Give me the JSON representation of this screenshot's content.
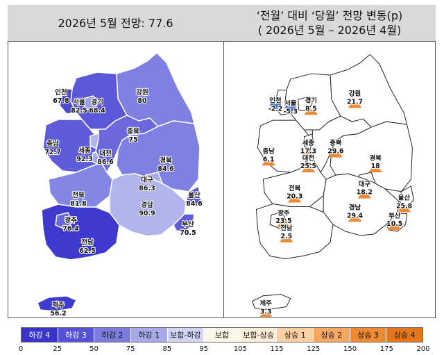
{
  "left_panel": {
    "title": "2026년 5월 전망: 77.6"
  },
  "right_panel": {
    "title_line1": "‘전월’ 대비 ‘당월’ 전망 변동(p)",
    "title_line2": "( 2026년 5월 –   2026년 4월)"
  },
  "left_regions": [
    {
      "name": "인천",
      "value": "67.8"
    },
    {
      "name": "서울",
      "value": "82.5"
    },
    {
      "name": "경기",
      "value": "68.4"
    },
    {
      "name": "강원",
      "value": "80"
    },
    {
      "name": "충남",
      "value": "72.7"
    },
    {
      "name": "세종",
      "value": "92.3"
    },
    {
      "name": "충북",
      "value": "75"
    },
    {
      "name": "대전",
      "value": "86.6"
    },
    {
      "name": "경북",
      "value": "84.6"
    },
    {
      "name": "대구",
      "value": "86.3"
    },
    {
      "name": "전북",
      "value": "81.8"
    },
    {
      "name": "울산",
      "value": "84.6"
    },
    {
      "name": "경남",
      "value": "90.9"
    },
    {
      "name": "광주",
      "value": "76.4"
    },
    {
      "name": "부산",
      "value": "70.5"
    },
    {
      "name": "전남",
      "value": "62.5"
    },
    {
      "name": "제주",
      "value": "56.2"
    }
  ],
  "right_regions": [
    {
      "name": "인천",
      "value": "-2.2",
      "direction": "down"
    },
    {
      "name": "서울",
      "value": "-5.3",
      "direction": "down"
    },
    {
      "name": "경기",
      "value": "8.5",
      "direction": "up"
    },
    {
      "name": "강원",
      "value": "21.7",
      "direction": "up"
    },
    {
      "name": "세종",
      "value": "17.3",
      "direction": "up"
    },
    {
      "name": "충북",
      "value": "29.6",
      "direction": "up"
    },
    {
      "name": "충남",
      "value": "6.1",
      "direction": "up"
    },
    {
      "name": "대전",
      "value": "25.5",
      "direction": "up"
    },
    {
      "name": "경북",
      "value": "18",
      "direction": "up"
    },
    {
      "name": "전북",
      "value": "20.3",
      "direction": "up"
    },
    {
      "name": "대구",
      "value": "18.2",
      "direction": "up"
    },
    {
      "name": "울산",
      "value": "25.8",
      "direction": "up"
    },
    {
      "name": "광주",
      "value": "23.5",
      "direction": "up"
    },
    {
      "name": "경남",
      "value": "29.4",
      "direction": "up"
    },
    {
      "name": "부산",
      "value": "10.5",
      "direction": "up"
    },
    {
      "name": "전남",
      "value": "2.5",
      "direction": "up"
    },
    {
      "name": "제주",
      "value": "3.3",
      "direction": "up"
    }
  ],
  "legend": {
    "categories": [
      {
        "label": "하강 4",
        "color": "#3a35c9",
        "text_color": "#ffffff"
      },
      {
        "label": "하강 3",
        "color": "#5552d6",
        "text_color": "#ffffff"
      },
      {
        "label": "하강 2",
        "color": "#7b7be0",
        "text_color": "#111111"
      },
      {
        "label": "하강 1",
        "color": "#a7a9ea",
        "text_color": "#111111"
      },
      {
        "label": "보합-하강",
        "color": "#d2d4f3",
        "text_color": "#111111"
      },
      {
        "label": "보합",
        "color": "#fbf7e8",
        "text_color": "#111111"
      },
      {
        "label": "보합-상승",
        "color": "#fdebd6",
        "text_color": "#111111"
      },
      {
        "label": "상승 1",
        "color": "#fbcfa4",
        "text_color": "#111111"
      },
      {
        "label": "상승 2",
        "color": "#f6a862",
        "text_color": "#111111"
      },
      {
        "label": "상승 3",
        "color": "#ef8a34",
        "text_color": "#111111"
      },
      {
        "label": "상승 4",
        "color": "#e47719",
        "text_color": "#111111"
      }
    ],
    "ticks": [
      "0",
      "25",
      "50",
      "75",
      "85",
      "95",
      "105",
      "115",
      "125",
      "150",
      "175",
      "200"
    ]
  },
  "colors": {
    "down_arrow": "#4f7bd0",
    "up_arrow": "#ef8a34",
    "border": "#555555"
  }
}
